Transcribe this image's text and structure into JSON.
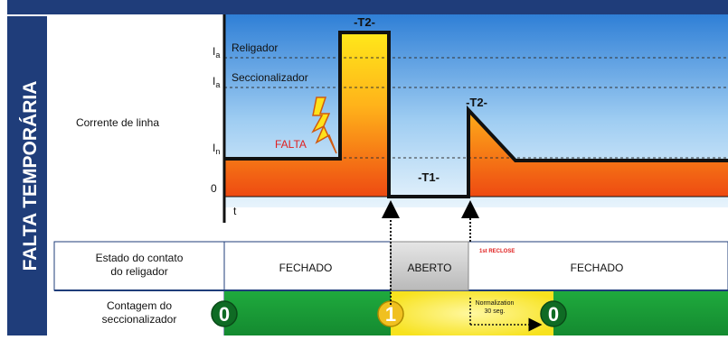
{
  "side_title": "FALTA TEMPORÁRIA",
  "rows": {
    "current": "Corrente de linha",
    "state_line1": "Estado do contato",
    "state_line2": "do religador",
    "count_line1": "Contagem do",
    "count_line2": "seccionalizador"
  },
  "axis": {
    "ia": "I",
    "ia_sub": "a",
    "in": "I",
    "in_sub": "n",
    "zero": "0",
    "t": "t"
  },
  "levels": {
    "religador": "Religador",
    "seccionalizador": "Seccionalizador"
  },
  "labels": {
    "falta": "FALTA",
    "t2_first": "-T2-",
    "t1": "-T1-",
    "t2_second": "-T2-",
    "reclose": "1st RECLOSE"
  },
  "states": {
    "closed1": "FECHADO",
    "open": "ABERTO",
    "closed2": "FECHADO"
  },
  "counter": {
    "c0a": "0",
    "c1": "1",
    "c0b": "0",
    "normalization_line1": "Normalization",
    "normalization_line2": "30 seg."
  },
  "colors": {
    "navy": "#1f3d7a",
    "orange": "#f07a1a",
    "yellow": "#f7e21e",
    "green": "#1e9b3a",
    "sky": "#3d8be0",
    "red": "#e02020"
  }
}
